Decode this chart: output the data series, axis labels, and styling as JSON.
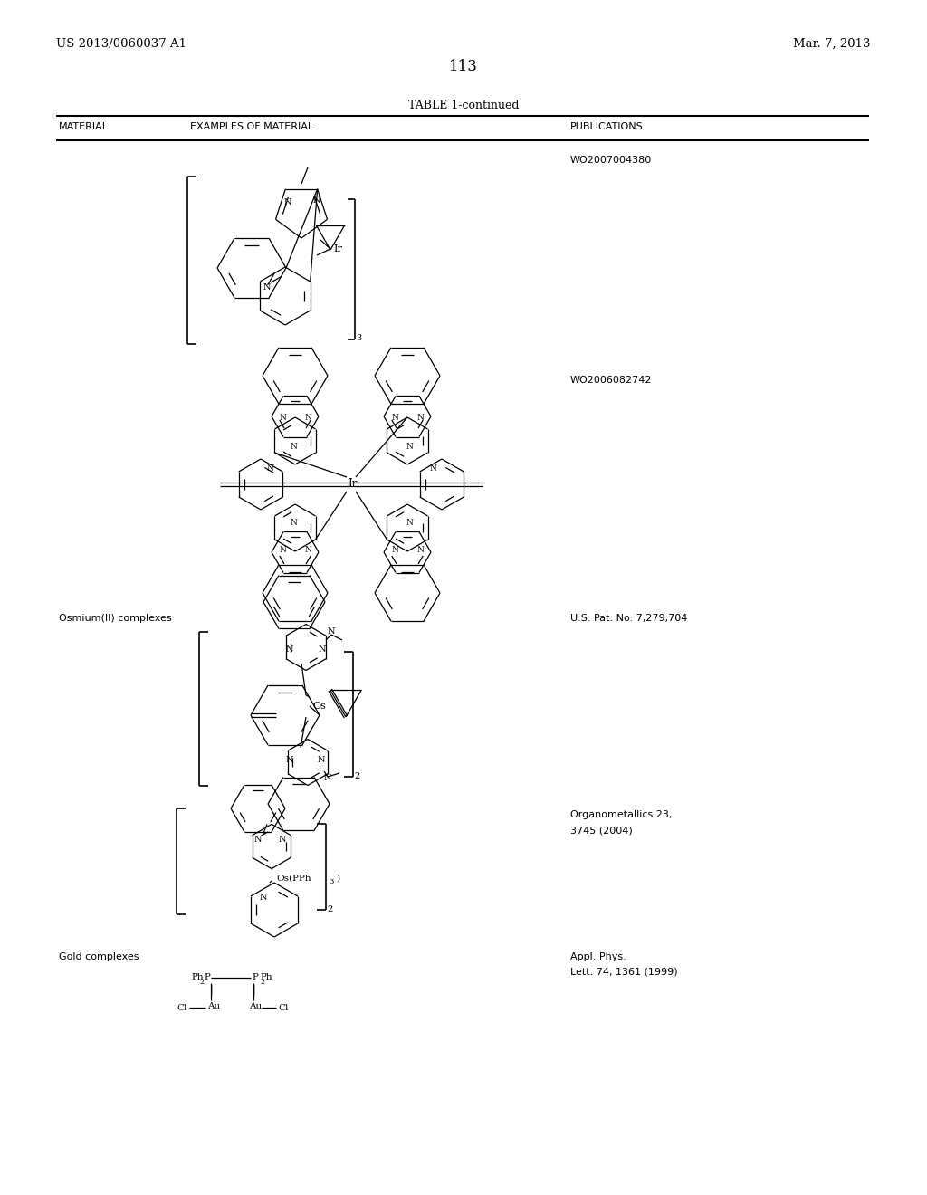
{
  "background_color": "#ffffff",
  "page_number": "113",
  "left_header": "US 2013/0060037 A1",
  "right_header": "Mar. 7, 2013",
  "table_title": "TABLE 1-continued",
  "col1_header": "MATERIAL",
  "col2_header": "EXAMPLES OF MATERIAL",
  "col3_header": "PUBLICATIONS",
  "pub1": "WO2007004380",
  "pub2": "WO2006082742",
  "mat3": "Osmium(II) complexes",
  "pub3": "U.S. Pat. No. 7,279,704",
  "pub4a": "Organometallics 23,",
  "pub4b": "3745 (2004)",
  "mat5": "Gold complexes",
  "pub5a": "Appl. Phys.",
  "pub5b": "Lett. 74, 1361 (1999)"
}
